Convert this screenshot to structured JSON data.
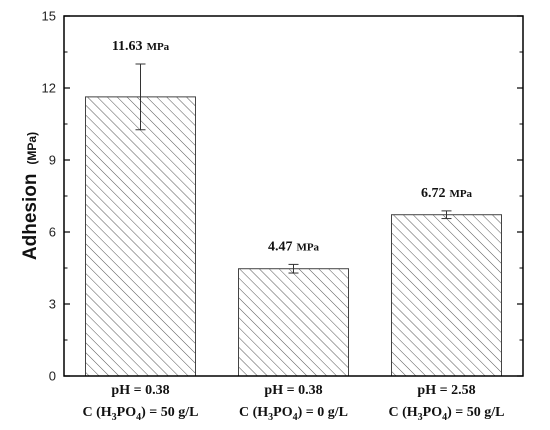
{
  "chart_data": {
    "type": "bar",
    "ylabel": "Adhesion",
    "ylabel_unit": "(MPa)",
    "ylim": [
      0,
      15
    ],
    "yticks": [
      0,
      3,
      6,
      9,
      12,
      15
    ],
    "grid": false,
    "legend": "none",
    "bar_fill": "hatched diagonal",
    "colors": {
      "bar_stroke": "#444444",
      "hatch": "#555555",
      "axis": "#000000"
    },
    "categories": [
      {
        "line1": "pH = 0.38",
        "line2_prefix": "C (H",
        "sub1": "3",
        "line2_mid": "PO",
        "sub2": "4",
        "line2_suffix": ") = 50 g/L"
      },
      {
        "line1": "pH = 0.38",
        "line2_prefix": "C (H",
        "sub1": "3",
        "line2_mid": "PO",
        "sub2": "4",
        "line2_suffix": ") = 0 g/L"
      },
      {
        "line1": "pH = 2.58",
        "line2_prefix": "C (H",
        "sub1": "3",
        "line2_mid": "PO",
        "sub2": "4",
        "line2_suffix": ") = 50 g/L"
      }
    ],
    "values": [
      11.63,
      4.47,
      6.72
    ],
    "errors": [
      1.37,
      0.18,
      0.16
    ],
    "value_labels": [
      "11.63",
      "4.47",
      "6.72"
    ],
    "value_unit": "MPa"
  }
}
